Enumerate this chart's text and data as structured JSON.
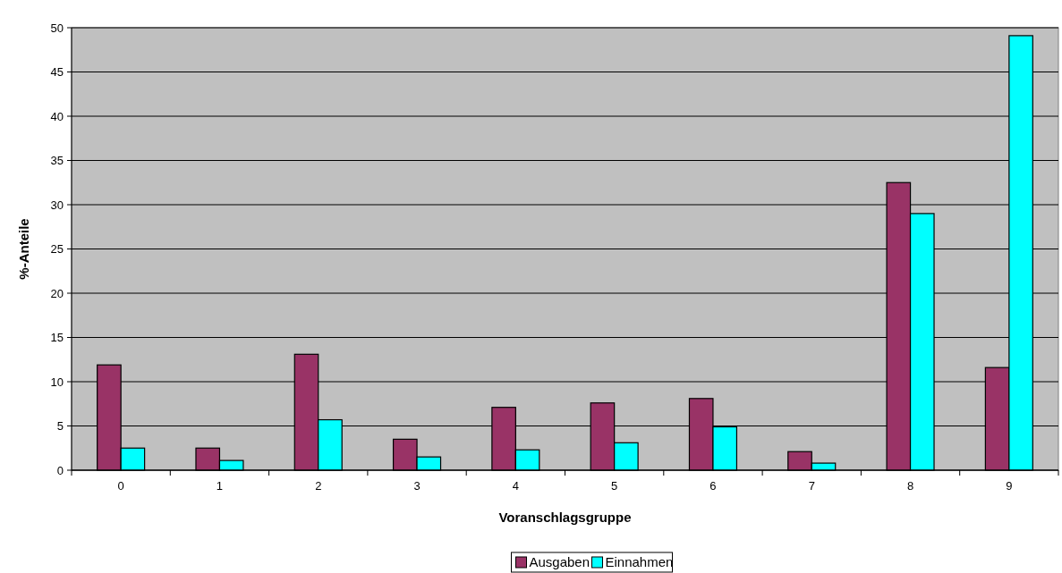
{
  "chart_data": {
    "type": "bar",
    "xlabel": "Voranschlagsgruppe",
    "ylabel": "%-Anteile",
    "categories": [
      "0",
      "1",
      "2",
      "3",
      "4",
      "5",
      "6",
      "7",
      "8",
      "9"
    ],
    "series": [
      {
        "name": "Ausgaben",
        "color": "#993366",
        "values": [
          11.9,
          2.5,
          13.1,
          3.5,
          7.1,
          7.6,
          8.1,
          2.1,
          32.5,
          11.6
        ]
      },
      {
        "name": "Einnahmen",
        "color": "#00ffff",
        "values": [
          2.5,
          1.1,
          5.7,
          1.5,
          2.3,
          3.1,
          4.9,
          0.8,
          29.0,
          49.1
        ]
      }
    ],
    "ylim": [
      0,
      50
    ],
    "yticks": [
      0,
      5,
      10,
      15,
      20,
      25,
      30,
      35,
      40,
      45,
      50
    ],
    "grid": "y",
    "legend": "bottom"
  }
}
